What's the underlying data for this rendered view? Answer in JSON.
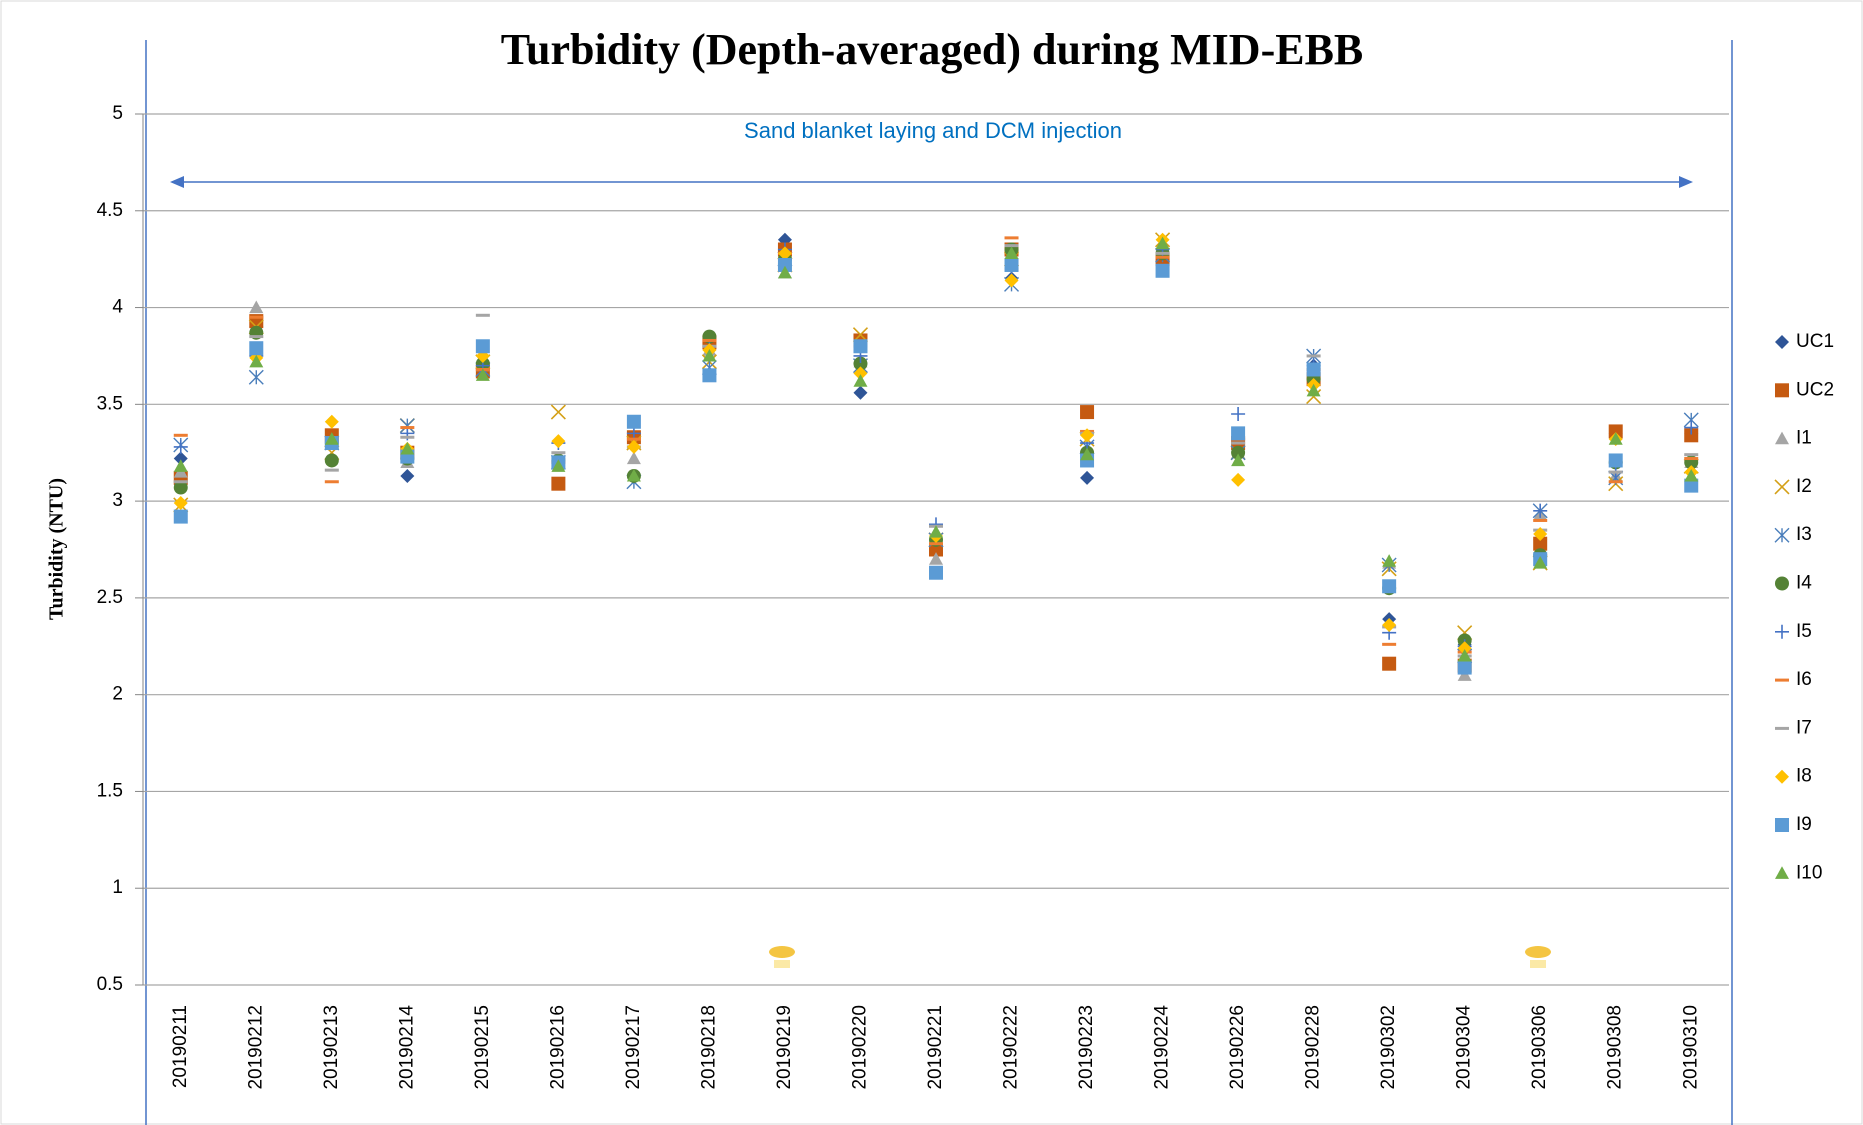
{
  "chart_data": {
    "type": "scatter",
    "title": "Turbidity (Depth-averaged) during MID-EBB",
    "y_label": "Turbidity (NTU)",
    "annotation": "Sand blanket laying and DCM injection",
    "categories": [
      "20190211",
      "20190212",
      "20190213",
      "20190214",
      "20190215",
      "20190216",
      "20190217",
      "20190218",
      "20190219",
      "20190220",
      "20190221",
      "20190222",
      "20190223",
      "20190224",
      "20190226",
      "20190228",
      "20190302",
      "20190304",
      "20190306",
      "20190308",
      "20190310"
    ],
    "ylim": [
      0.5,
      5
    ],
    "yticks": [
      0.5,
      1,
      1.5,
      2,
      2.5,
      3,
      3.5,
      4,
      4.5,
      5
    ],
    "grid": true,
    "legend": "right",
    "series": [
      {
        "name": "UC1",
        "color": "#2f5597",
        "marker": "diamond",
        "values": [
          3.22,
          3.9,
          3.3,
          3.13,
          3.7,
          3.22,
          3.13,
          3.8,
          4.35,
          3.56,
          2.78,
          4.15,
          3.12,
          4.3,
          3.3,
          3.7,
          2.39,
          2.26,
          2.8,
          3.35,
          3.35
        ]
      },
      {
        "name": "UC2",
        "color": "#c55a11",
        "marker": "square",
        "values": [
          3.12,
          3.93,
          3.34,
          3.25,
          3.67,
          3.09,
          3.33,
          3.82,
          4.3,
          3.83,
          2.75,
          4.3,
          3.46,
          4.25,
          3.3,
          3.63,
          2.16,
          2.15,
          2.78,
          3.36,
          3.34
        ]
      },
      {
        "name": "I1",
        "color": "#a5a5a5",
        "marker": "triangle",
        "values": [
          3.15,
          4.0,
          3.3,
          3.2,
          3.7,
          3.2,
          3.22,
          3.78,
          4.18,
          3.72,
          2.7,
          4.22,
          3.25,
          4.3,
          3.25,
          3.65,
          2.68,
          2.1,
          2.93,
          3.13,
          3.2
        ]
      },
      {
        "name": "I2",
        "color": "#d4a017",
        "marker": "x",
        "values": [
          2.98,
          3.9,
          3.25,
          3.39,
          3.72,
          3.46,
          3.3,
          3.72,
          4.22,
          3.86,
          2.8,
          4.25,
          3.32,
          4.35,
          3.25,
          3.54,
          2.65,
          2.32,
          2.68,
          3.09,
          3.18
        ]
      },
      {
        "name": "I3",
        "color": "#4a7ebb",
        "marker": "star",
        "values": [
          3.29,
          3.64,
          3.3,
          3.39,
          3.68,
          3.2,
          3.1,
          3.69,
          4.25,
          3.7,
          2.8,
          4.12,
          3.28,
          4.27,
          3.25,
          3.75,
          2.67,
          2.2,
          2.95,
          3.12,
          3.42
        ]
      },
      {
        "name": "I4",
        "color": "#548235",
        "marker": "circle",
        "values": [
          3.07,
          3.87,
          3.21,
          3.22,
          3.71,
          3.21,
          3.13,
          3.85,
          4.25,
          3.71,
          2.8,
          4.3,
          3.25,
          4.28,
          3.25,
          3.63,
          2.55,
          2.28,
          2.72,
          3.2,
          3.2
        ]
      },
      {
        "name": "I5",
        "color": "#4472c4",
        "marker": "plus",
        "values": [
          3.28,
          3.75,
          3.3,
          3.35,
          3.7,
          3.3,
          3.35,
          3.8,
          4.3,
          3.75,
          2.88,
          4.2,
          3.3,
          4.3,
          3.45,
          3.7,
          2.32,
          2.25,
          2.95,
          3.15,
          3.38
        ]
      },
      {
        "name": "I6",
        "color": "#ed7d31",
        "marker": "dash",
        "values": [
          3.34,
          3.95,
          3.1,
          3.38,
          3.68,
          3.2,
          3.32,
          3.83,
          4.28,
          3.8,
          2.78,
          4.36,
          3.36,
          4.26,
          3.32,
          3.68,
          2.26,
          2.22,
          2.9,
          3.1,
          3.22
        ]
      },
      {
        "name": "I7",
        "color": "#a5a5a5",
        "marker": "dash",
        "values": [
          3.1,
          3.85,
          3.16,
          3.33,
          3.96,
          3.25,
          3.28,
          3.8,
          4.22,
          3.82,
          2.87,
          4.32,
          3.35,
          4.28,
          3.3,
          3.75,
          2.35,
          2.2,
          2.85,
          3.15,
          3.24
        ]
      },
      {
        "name": "I8",
        "color": "#ffc000",
        "marker": "diamond",
        "values": [
          2.99,
          3.74,
          3.41,
          3.27,
          3.75,
          3.31,
          3.28,
          3.78,
          4.28,
          3.66,
          2.82,
          4.14,
          3.34,
          4.35,
          3.11,
          3.6,
          2.36,
          2.24,
          2.83,
          3.32,
          3.15
        ]
      },
      {
        "name": "I9",
        "color": "#5b9bd5",
        "marker": "square",
        "values": [
          2.92,
          3.79,
          3.3,
          3.23,
          3.8,
          3.2,
          3.41,
          3.65,
          4.22,
          3.8,
          2.63,
          4.22,
          3.21,
          4.19,
          3.35,
          3.68,
          2.56,
          2.14,
          2.7,
          3.21,
          3.08
        ]
      },
      {
        "name": "I10",
        "color": "#70ad47",
        "marker": "triangle",
        "values": [
          3.18,
          3.72,
          3.32,
          3.27,
          3.65,
          3.18,
          3.13,
          3.75,
          4.18,
          3.62,
          2.84,
          4.28,
          3.24,
          4.33,
          3.21,
          3.57,
          2.69,
          2.2,
          2.68,
          3.32,
          3.13
        ]
      }
    ]
  }
}
